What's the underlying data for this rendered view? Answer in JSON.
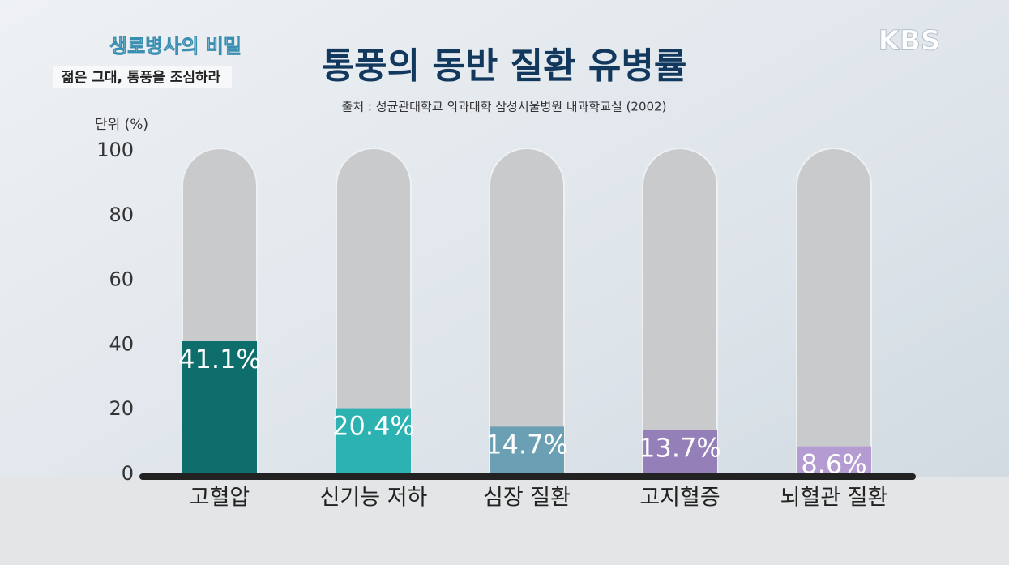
{
  "broadcast": {
    "program": "생로병사의 비밀",
    "episode": "젊은 그대, 통풍을 조심하라",
    "channel": "KBS"
  },
  "chart_data": {
    "type": "bar",
    "title": "통풍의 동반 질환 유병률",
    "subtitle": "출처 : 성균관대학교 의과대학 삼성서울병원 내과학교실 (2002)",
    "y_label": "단위 (%)",
    "categories": [
      "고혈압",
      "신기능 저하",
      "심장 질환",
      "고지혈증",
      "뇌혈관 질환"
    ],
    "values": [
      41.1,
      20.4,
      14.7,
      13.7,
      8.6
    ],
    "value_labels": [
      "41.1%",
      "20.4%",
      "14.7%",
      "13.7%",
      "8.6%"
    ],
    "colors": [
      "#0e6e6b",
      "#2cb2b1",
      "#6b9fb3",
      "#957fb8",
      "#b49cd2"
    ],
    "ylim": [
      0,
      100
    ],
    "yticks": [
      0,
      20,
      40,
      60,
      80,
      100
    ],
    "grid": false
  }
}
